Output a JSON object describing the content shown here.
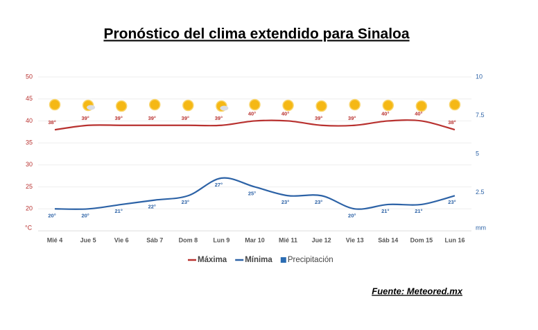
{
  "chart_data": {
    "type": "line",
    "title": "Pronóstico del clima extendido para Sinaloa",
    "source": "Fuente: Meteored.mx",
    "categories": [
      "Mié 4",
      "Jue 5",
      "Vie 6",
      "Sáb 7",
      "Dom 8",
      "Lun 9",
      "Mar 10",
      "Mié 11",
      "Jue 12",
      "Vie 13",
      "Sáb 14",
      "Dom 15",
      "Lun 16"
    ],
    "series": [
      {
        "name": "Máxima",
        "color": "#b8312f",
        "values": [
          38,
          39,
          39,
          39,
          39,
          39,
          40,
          40,
          39,
          39,
          40,
          40,
          38
        ],
        "value_labels": [
          "38°",
          "39°",
          "39°",
          "39°",
          "39°",
          "39°",
          "40°",
          "40°",
          "39°",
          "39°",
          "40°",
          "40°",
          "38°"
        ]
      },
      {
        "name": "Mínima",
        "color": "#2c62a6",
        "values": [
          20,
          20,
          21,
          22,
          23,
          27,
          25,
          23,
          23,
          20,
          21,
          21,
          23
        ],
        "value_labels": [
          "20°",
          "20°",
          "21°",
          "22°",
          "23°",
          "27°",
          "25°",
          "23°",
          "23°",
          "20°",
          "21°",
          "21°",
          "23°"
        ]
      },
      {
        "name": "Precipitación",
        "color": "#2c6db3",
        "axis": "y2",
        "values": [
          null,
          null,
          null,
          null,
          null,
          null,
          null,
          null,
          null,
          null,
          null,
          null,
          null
        ]
      }
    ],
    "ylim": [
      15,
      50
    ],
    "yticks": [
      20,
      25,
      30,
      35,
      40,
      45,
      50
    ],
    "y_label": "°C",
    "y2lim": [
      0,
      10
    ],
    "y2ticks": [
      2.5,
      5,
      7.5,
      10
    ],
    "y2_label": "mm",
    "grid": true
  }
}
